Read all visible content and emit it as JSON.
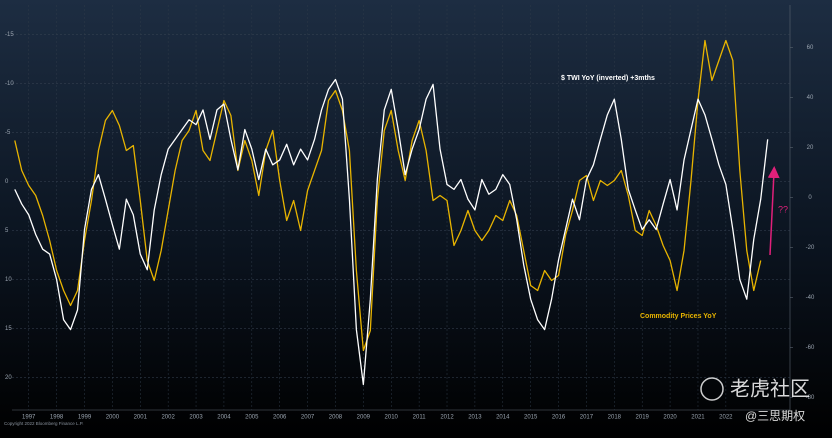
{
  "chart_data": {
    "type": "line",
    "x": [
      1996.5,
      1996.75,
      1997,
      1997.25,
      1997.5,
      1997.75,
      1998,
      1998.25,
      1998.5,
      1998.75,
      1999,
      1999.25,
      1999.5,
      1999.75,
      2000,
      2000.25,
      2000.5,
      2000.75,
      2001,
      2001.25,
      2001.5,
      2001.75,
      2002,
      2002.25,
      2002.5,
      2002.75,
      2003,
      2003.25,
      2003.5,
      2003.75,
      2004,
      2004.25,
      2004.5,
      2004.75,
      2005,
      2005.25,
      2005.5,
      2005.75,
      2006,
      2006.25,
      2006.5,
      2006.75,
      2007,
      2007.25,
      2007.5,
      2007.75,
      2008,
      2008.25,
      2008.5,
      2008.75,
      2009,
      2009.25,
      2009.5,
      2009.75,
      2010,
      2010.25,
      2010.5,
      2010.75,
      2011,
      2011.25,
      2011.5,
      2011.75,
      2012,
      2012.25,
      2012.5,
      2012.75,
      2013,
      2013.25,
      2013.5,
      2013.75,
      2014,
      2014.25,
      2014.5,
      2014.75,
      2015,
      2015.25,
      2015.5,
      2015.75,
      2016,
      2016.25,
      2016.5,
      2016.75,
      2017,
      2017.25,
      2017.5,
      2017.75,
      2018,
      2018.25,
      2018.5,
      2018.75,
      2019,
      2019.25,
      2019.5,
      2019.75,
      2020,
      2020.25,
      2020.5,
      2020.75,
      2021,
      2021.25,
      2021.5,
      2021.75,
      2022,
      2022.25,
      2022.5,
      2022.75,
      2023,
      2023.25,
      2023.5
    ],
    "xlim": [
      1996.4,
      2024.3
    ],
    "xticks": [
      1997,
      1998,
      1999,
      2000,
      2001,
      2002,
      2003,
      2004,
      2005,
      2006,
      2007,
      2008,
      2009,
      2010,
      2011,
      2012,
      2013,
      2014,
      2015,
      2016,
      2017,
      2018,
      2019,
      2020,
      2021,
      2022
    ],
    "ylim": [
      -18,
      23.3
    ],
    "y_inverted": true,
    "yticks": [
      -15,
      -10,
      -5,
      0,
      5,
      10,
      15,
      20
    ],
    "y2lim": [
      -85,
      77
    ],
    "y2ticks": [
      -80,
      -60,
      -40,
      -20,
      0,
      20,
      40,
      60
    ],
    "grid": true,
    "series": [
      {
        "name": "$ TWI YoY (inverted) +3mths",
        "color": "#ffffff",
        "values": [
          0.8,
          2.3,
          3.4,
          5.4,
          6.9,
          7.4,
          10.0,
          14.1,
          15.1,
          13.1,
          4.9,
          0.8,
          -0.7,
          1.8,
          4.4,
          6.9,
          1.8,
          3.4,
          7.4,
          9.0,
          2.9,
          -0.7,
          -3.3,
          -4.3,
          -5.3,
          -6.3,
          -5.8,
          -7.3,
          -4.3,
          -7.3,
          -7.9,
          -4.3,
          -1.2,
          -5.3,
          -3.3,
          -0.2,
          -3.3,
          -1.7,
          -2.2,
          -3.8,
          -1.7,
          -3.3,
          -2.2,
          -4.3,
          -7.3,
          -9.4,
          -10.4,
          -8.4,
          1.8,
          15.1,
          20.7,
          12.0,
          -0.2,
          -7.3,
          -9.4,
          -5.3,
          -0.7,
          -3.3,
          -5.3,
          -8.4,
          -9.9,
          -3.3,
          0.3,
          0.8,
          -0.2,
          1.8,
          2.9,
          -0.2,
          1.3,
          0.8,
          -0.7,
          0.3,
          3.9,
          8.5,
          12.0,
          14.1,
          15.1,
          12.0,
          8.0,
          4.9,
          1.8,
          3.9,
          -0.2,
          -1.7,
          -4.3,
          -6.8,
          -8.4,
          -4.3,
          0.8,
          2.9,
          4.9,
          3.9,
          4.9,
          2.3,
          -0.2,
          2.9,
          -2.2,
          -5.3,
          -8.4,
          -6.8,
          -4.3,
          -1.7,
          0.3,
          4.9,
          10.0,
          12.0,
          5.9,
          1.8,
          -4.3
        ]
      },
      {
        "name": "Commodity Prices YoY",
        "color": "#e8b400",
        "axis": "y2",
        "values": [
          22.8,
          10.8,
          4.8,
          0.8,
          -7.2,
          -17.2,
          -29.2,
          -37.2,
          -43.2,
          -37.2,
          -17.2,
          -1.2,
          18.8,
          30.8,
          34.8,
          28.8,
          18.8,
          20.8,
          -1.2,
          -25.2,
          -33.2,
          -21.2,
          -5.2,
          10.8,
          22.8,
          26.8,
          34.8,
          18.8,
          14.8,
          26.8,
          38.8,
          32.8,
          10.8,
          22.8,
          14.8,
          0.8,
          18.8,
          26.8,
          6.8,
          -9.2,
          -1.2,
          -13.2,
          2.8,
          10.8,
          18.8,
          38.8,
          42.8,
          34.8,
          18.8,
          -29.2,
          -61.2,
          -53.2,
          -1.2,
          26.8,
          34.8,
          18.8,
          6.8,
          22.8,
          30.8,
          18.8,
          -1.2,
          0.8,
          -1.2,
          -19.2,
          -13.2,
          -5.2,
          -13.2,
          -17.2,
          -13.2,
          -7.2,
          -9.2,
          -1.2,
          -7.2,
          -21.2,
          -35.2,
          -37.2,
          -29.2,
          -33.2,
          -31.2,
          -15.2,
          -5.2,
          6.8,
          8.8,
          -1.2,
          6.8,
          4.8,
          6.8,
          10.8,
          0.8,
          -13.2,
          -15.2,
          -5.2,
          -11.2,
          -19.2,
          -25.2,
          -37.2,
          -21.2,
          6.8,
          38.8,
          62.8,
          46.8,
          54.8,
          62.8,
          54.8,
          10.8,
          -21.2,
          -37.2,
          -25.2,
          null
        ]
      }
    ],
    "annotations": [
      {
        "text": "??",
        "color": "#e0207a"
      }
    ],
    "footer": "Copyright 2022 Bloomberg Finance L.P.",
    "watermark": [
      "老虎社区",
      "@三思期权"
    ]
  }
}
